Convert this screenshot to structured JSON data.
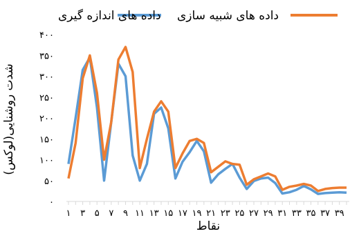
{
  "chart_data": {
    "type": "line",
    "x": [
      1,
      2,
      3,
      4,
      5,
      6,
      7,
      8,
      9,
      10,
      11,
      12,
      13,
      14,
      15,
      16,
      17,
      18,
      19,
      20,
      21,
      22,
      23,
      24,
      25,
      26,
      27,
      28,
      29,
      30,
      31,
      32,
      33,
      34,
      35,
      36,
      37,
      38,
      39,
      40
    ],
    "x_tick_labels": [
      "1",
      "3",
      "5",
      "7",
      "9",
      "11",
      "13",
      "15",
      "17",
      "19",
      "21",
      "23",
      "25",
      "27",
      "29",
      "31",
      "33",
      "35",
      "37",
      "39"
    ],
    "y_tick_labels": [
      "0",
      "50",
      "100",
      "150",
      "200",
      "250",
      "300",
      "350",
      "400"
    ],
    "ylim": [
      0,
      400
    ],
    "xlabel": "نقاط",
    "ylabel": "شدت روشنایی(لوکس)",
    "legend_position": "top",
    "series": [
      {
        "name": "داده های اندازه گیری",
        "color": "#5b9bd5",
        "values": [
          90,
          200,
          315,
          345,
          225,
          50,
          190,
          330,
          300,
          110,
          50,
          90,
          210,
          225,
          175,
          55,
          95,
          118,
          145,
          120,
          45,
          65,
          78,
          90,
          57,
          30,
          49,
          55,
          57,
          44,
          19,
          22,
          28,
          37,
          29,
          18,
          20,
          21,
          22,
          21
        ]
      },
      {
        "name": "داده های شبیه سازی",
        "color": "#ed7d31",
        "values": [
          55,
          140,
          295,
          350,
          260,
          100,
          190,
          340,
          370,
          310,
          80,
          150,
          215,
          240,
          215,
          80,
          115,
          145,
          150,
          140,
          70,
          83,
          96,
          90,
          88,
          40,
          53,
          60,
          67,
          60,
          28,
          35,
          38,
          42,
          38,
          25,
          30,
          32,
          33,
          33
        ]
      }
    ]
  }
}
